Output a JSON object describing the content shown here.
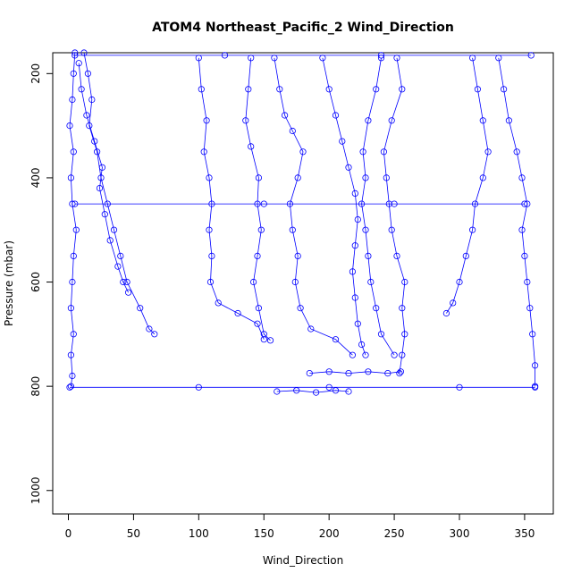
{
  "chart_data": {
    "type": "scatter",
    "title": "ATOM4 Northeast_Pacific_2 Wind_Direction",
    "xlabel": "Wind_Direction",
    "ylabel": "Pressure (mbar)",
    "xlim": [
      -12,
      372
    ],
    "ylim": [
      1045,
      160
    ],
    "y_reversed": true,
    "x_ticks": [
      0,
      50,
      100,
      150,
      200,
      250,
      300,
      350
    ],
    "y_ticks": [
      200,
      400,
      600,
      800,
      1000
    ],
    "grid": false,
    "legend": "none",
    "marker": "open-circle",
    "connect_points": true,
    "color": "#0000ff",
    "series": [
      {
        "profile_points": [
          [
            5,
            160
          ],
          [
            4,
            200
          ],
          [
            3,
            250
          ],
          [
            1,
            300
          ],
          [
            4,
            350
          ],
          [
            2,
            400
          ],
          [
            3,
            450
          ],
          [
            6,
            500
          ],
          [
            4,
            550
          ],
          [
            3,
            600
          ],
          [
            2,
            650
          ],
          [
            4,
            700
          ],
          [
            2,
            740
          ],
          [
            3,
            780
          ],
          [
            2,
            800
          ]
        ]
      },
      {
        "profile_points": [
          [
            12,
            160
          ],
          [
            15,
            200
          ],
          [
            18,
            250
          ],
          [
            16,
            300
          ],
          [
            22,
            350
          ],
          [
            25,
            400
          ],
          [
            30,
            450
          ],
          [
            35,
            500
          ],
          [
            40,
            550
          ],
          [
            45,
            600
          ],
          [
            55,
            650
          ],
          [
            62,
            690
          ],
          [
            66,
            700
          ]
        ]
      },
      {
        "profile_points": [
          [
            8,
            180
          ],
          [
            10,
            230
          ],
          [
            14,
            280
          ],
          [
            20,
            330
          ],
          [
            26,
            380
          ],
          [
            24,
            420
          ],
          [
            28,
            470
          ],
          [
            32,
            520
          ],
          [
            38,
            570
          ],
          [
            42,
            600
          ],
          [
            46,
            620
          ]
        ]
      },
      {
        "profile_points": [
          [
            100,
            170
          ],
          [
            102,
            230
          ],
          [
            106,
            290
          ],
          [
            104,
            350
          ],
          [
            108,
            400
          ],
          [
            110,
            450
          ],
          [
            108,
            500
          ],
          [
            110,
            550
          ],
          [
            109,
            600
          ],
          [
            115,
            640
          ],
          [
            130,
            660
          ],
          [
            145,
            680
          ],
          [
            150,
            710
          ]
        ]
      },
      {
        "profile_points": [
          [
            140,
            170
          ],
          [
            138,
            230
          ],
          [
            136,
            290
          ],
          [
            140,
            340
          ],
          [
            146,
            400
          ],
          [
            145,
            450
          ],
          [
            148,
            500
          ],
          [
            145,
            550
          ],
          [
            142,
            600
          ],
          [
            146,
            650
          ],
          [
            150,
            700
          ],
          [
            155,
            712
          ]
        ]
      },
      {
        "profile_points": [
          [
            158,
            170
          ],
          [
            162,
            230
          ],
          [
            166,
            280
          ],
          [
            172,
            310
          ],
          [
            180,
            350
          ],
          [
            176,
            400
          ],
          [
            170,
            450
          ],
          [
            172,
            500
          ],
          [
            176,
            550
          ],
          [
            174,
            600
          ],
          [
            178,
            650
          ],
          [
            186,
            690
          ],
          [
            205,
            710
          ],
          [
            218,
            740
          ]
        ]
      },
      {
        "profile_points": [
          [
            195,
            170
          ],
          [
            200,
            230
          ],
          [
            205,
            280
          ],
          [
            210,
            330
          ],
          [
            215,
            380
          ],
          [
            220,
            430
          ],
          [
            222,
            480
          ],
          [
            220,
            530
          ],
          [
            218,
            580
          ],
          [
            220,
            630
          ],
          [
            222,
            680
          ],
          [
            225,
            720
          ],
          [
            228,
            740
          ]
        ]
      },
      {
        "profile_points": [
          [
            240,
            170
          ],
          [
            236,
            230
          ],
          [
            230,
            290
          ],
          [
            226,
            350
          ],
          [
            228,
            400
          ],
          [
            225,
            450
          ],
          [
            228,
            500
          ],
          [
            230,
            550
          ],
          [
            232,
            600
          ],
          [
            236,
            650
          ],
          [
            240,
            700
          ],
          [
            250,
            740
          ]
        ]
      },
      {
        "profile_points": [
          [
            252,
            170
          ],
          [
            256,
            230
          ],
          [
            248,
            290
          ],
          [
            242,
            350
          ],
          [
            244,
            400
          ],
          [
            246,
            450
          ],
          [
            248,
            500
          ],
          [
            252,
            550
          ],
          [
            258,
            600
          ],
          [
            256,
            650
          ],
          [
            258,
            700
          ],
          [
            256,
            740
          ],
          [
            254,
            775
          ]
        ]
      },
      {
        "profile_points": [
          [
            310,
            170
          ],
          [
            314,
            230
          ],
          [
            318,
            290
          ],
          [
            322,
            350
          ],
          [
            318,
            400
          ],
          [
            312,
            450
          ],
          [
            310,
            500
          ],
          [
            305,
            550
          ],
          [
            300,
            600
          ],
          [
            295,
            640
          ],
          [
            290,
            660
          ]
        ]
      },
      {
        "profile_points": [
          [
            330,
            170
          ],
          [
            334,
            230
          ],
          [
            338,
            290
          ],
          [
            344,
            350
          ],
          [
            348,
            400
          ],
          [
            352,
            450
          ],
          [
            348,
            500
          ],
          [
            350,
            550
          ],
          [
            352,
            600
          ],
          [
            354,
            650
          ],
          [
            356,
            700
          ],
          [
            358,
            760
          ],
          [
            358,
            800
          ]
        ]
      },
      {
        "profile_points": [
          [
            160,
            810
          ],
          [
            175,
            808
          ],
          [
            190,
            812
          ],
          [
            205,
            808
          ],
          [
            215,
            810
          ]
        ]
      },
      {
        "profile_points": [
          [
            185,
            775
          ],
          [
            200,
            772
          ],
          [
            215,
            775
          ],
          [
            230,
            772
          ],
          [
            245,
            775
          ],
          [
            255,
            772
          ]
        ]
      },
      {
        "profile_points": [
          [
            1,
            802
          ],
          [
            100,
            802
          ],
          [
            200,
            802
          ],
          [
            300,
            802
          ],
          [
            358,
            802
          ]
        ]
      },
      {
        "profile_points": [
          [
            5,
            450
          ],
          [
            150,
            450
          ],
          [
            250,
            450
          ],
          [
            350,
            450
          ]
        ]
      },
      {
        "profile_points": [
          [
            5,
            165
          ],
          [
            120,
            165
          ],
          [
            240,
            165
          ],
          [
            355,
            165
          ]
        ]
      }
    ]
  }
}
